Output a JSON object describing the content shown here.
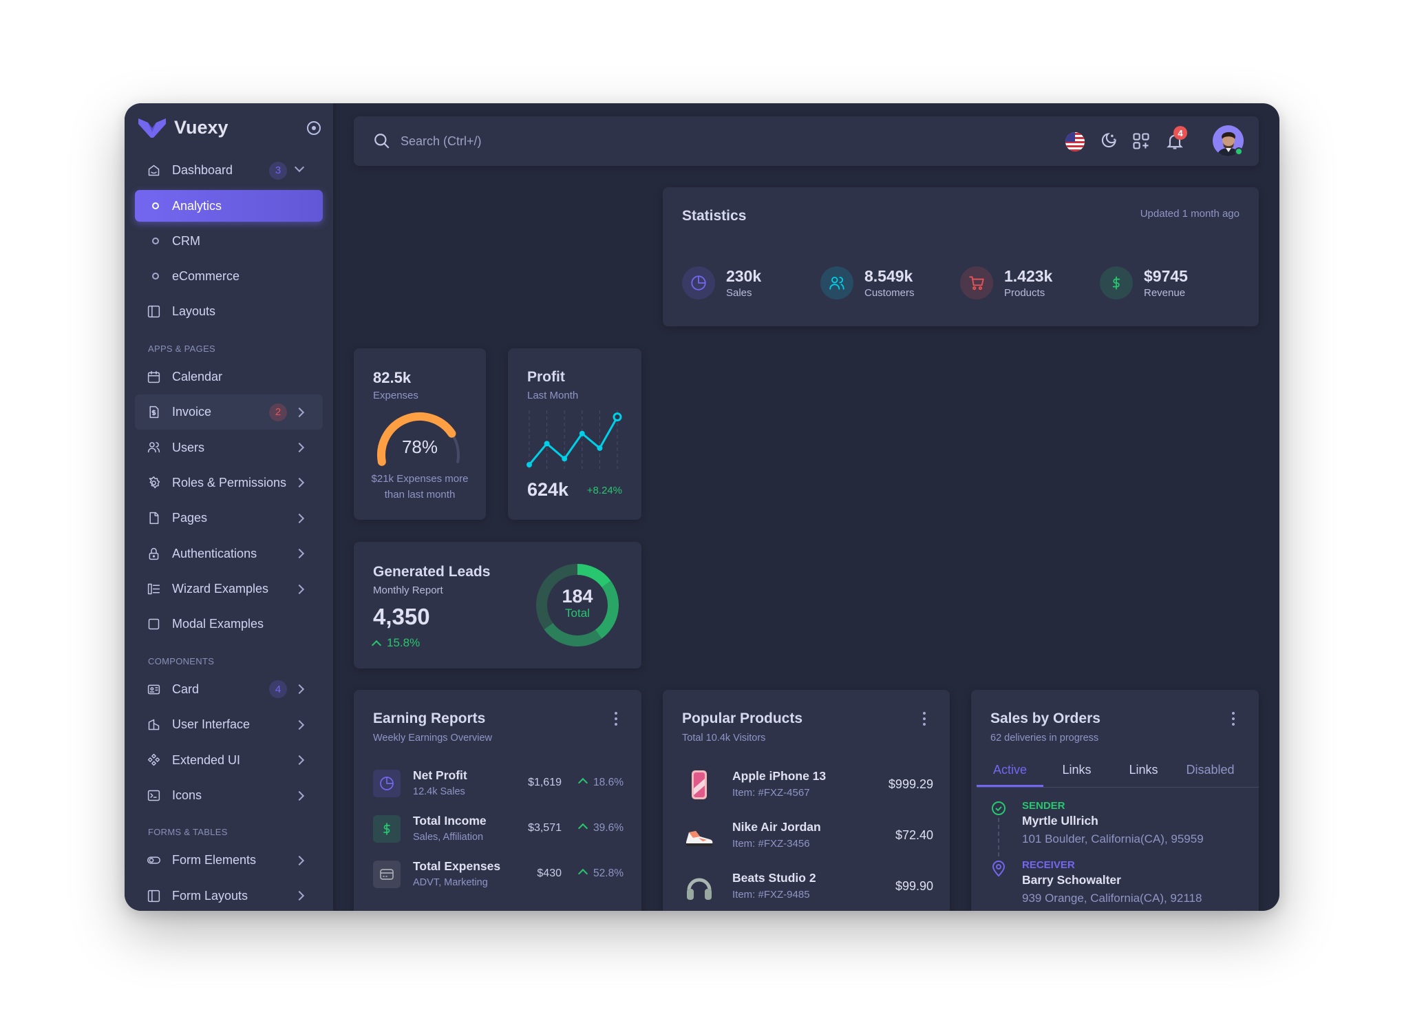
{
  "app": {
    "name": "Vuexy",
    "brand_color": "#7367f0"
  },
  "sidebar": {
    "items": [
      {
        "type": "item",
        "label": "Dashboard",
        "icon": "home-icon",
        "badge": "3",
        "badge_color": "#7367f0",
        "chevron": "down"
      },
      {
        "type": "sub",
        "label": "Analytics",
        "active": true
      },
      {
        "type": "sub",
        "label": "CRM"
      },
      {
        "type": "sub",
        "label": "eCommerce"
      },
      {
        "type": "item",
        "label": "Layouts",
        "icon": "layout-icon"
      },
      {
        "type": "section",
        "label": "APPS & PAGES"
      },
      {
        "type": "item",
        "label": "Calendar",
        "icon": "calendar-icon"
      },
      {
        "type": "item",
        "label": "Invoice",
        "icon": "file-dollar-icon",
        "badge": "2",
        "badge_color": "#ea5455",
        "chevron": "right",
        "hover": true
      },
      {
        "type": "item",
        "label": "Users",
        "icon": "users-icon",
        "chevron": "right"
      },
      {
        "type": "item",
        "label": "Roles & Permissions",
        "icon": "settings-icon",
        "chevron": "right"
      },
      {
        "type": "item",
        "label": "Pages",
        "icon": "file-icon",
        "chevron": "right"
      },
      {
        "type": "item",
        "label": "Authentications",
        "icon": "lock-icon",
        "chevron": "right"
      },
      {
        "type": "item",
        "label": "Wizard Examples",
        "icon": "wizard-icon",
        "chevron": "right"
      },
      {
        "type": "item",
        "label": "Modal Examples",
        "icon": "square-icon"
      },
      {
        "type": "section",
        "label": "COMPONENTS"
      },
      {
        "type": "item",
        "label": "Card",
        "icon": "id-card-icon",
        "badge": "4",
        "badge_color": "#7367f0",
        "chevron": "right"
      },
      {
        "type": "item",
        "label": "User Interface",
        "icon": "ui-icon",
        "chevron": "right"
      },
      {
        "type": "item",
        "label": "Extended UI",
        "icon": "components-icon",
        "chevron": "right"
      },
      {
        "type": "item",
        "label": "Icons",
        "icon": "terminal-icon",
        "chevron": "right"
      },
      {
        "type": "section",
        "label": "FORMS & TABLES"
      },
      {
        "type": "item",
        "label": "Form Elements",
        "icon": "toggle-icon",
        "chevron": "right"
      },
      {
        "type": "item",
        "label": "Form Layouts",
        "icon": "layout-icon",
        "chevron": "right"
      }
    ]
  },
  "navbar": {
    "search_placeholder": "Search (Ctrl+/)",
    "notification_count": "4"
  },
  "statistics": {
    "title": "Statistics",
    "updated": "Updated 1 month ago",
    "items": [
      {
        "value": "230k",
        "label": "Sales",
        "icon": "pie-chart-icon",
        "color": "#7367f0"
      },
      {
        "value": "8.549k",
        "label": "Customers",
        "icon": "users-icon",
        "color": "#00cfe8"
      },
      {
        "value": "1.423k",
        "label": "Products",
        "icon": "cart-icon",
        "color": "#ea5455"
      },
      {
        "value": "$9745",
        "label": "Revenue",
        "icon": "dollar-icon",
        "color": "#28c76f"
      }
    ]
  },
  "expenses": {
    "value": "82.5k",
    "label": "Expenses",
    "percent": 78,
    "percent_label": "78%",
    "note": "$21k Expenses more than last month",
    "color": "#ff9f43"
  },
  "profit": {
    "title": "Profit",
    "subtitle": "Last Month",
    "value": "624k",
    "change": "+8.24%",
    "color": "#00cfe8"
  },
  "leads": {
    "title": "Generated Leads",
    "subtitle": "Monthly Report",
    "value": "4,350",
    "change": "15.8%",
    "total": "184",
    "total_label": "Total"
  },
  "chart_data": [
    {
      "type": "gauge",
      "value": 78,
      "max": 100,
      "color": "#ff9f43"
    },
    {
      "type": "line",
      "x": [
        1,
        2,
        3,
        4,
        5,
        6
      ],
      "values": [
        0,
        42,
        12,
        62,
        33,
        95
      ],
      "color": "#00cfe8",
      "grid": "vertical-dashed"
    },
    {
      "type": "donut",
      "values": [
        15,
        25,
        25,
        35
      ],
      "colors": [
        "#28c76f",
        "#29a666",
        "#2c7f5b",
        "#2e564c"
      ],
      "total": 184
    }
  ],
  "earning": {
    "title": "Earning Reports",
    "subtitle": "Weekly Earnings Overview",
    "rows": [
      {
        "title": "Net Profit",
        "sub": "12.4k Sales",
        "amount": "$1,619",
        "pct": "18.6%",
        "icon": "pie-chart-icon",
        "color": "#7367f0"
      },
      {
        "title": "Total Income",
        "sub": "Sales, Affiliation",
        "amount": "$3,571",
        "pct": "39.6%",
        "icon": "dollar-icon",
        "color": "#28c76f"
      },
      {
        "title": "Total Expenses",
        "sub": "ADVT, Marketing",
        "amount": "$430",
        "pct": "52.8%",
        "icon": "credit-card-icon",
        "color": "#a8aaae"
      }
    ]
  },
  "popular": {
    "title": "Popular Products",
    "subtitle": "Total 10.4k Visitors",
    "rows": [
      {
        "name": "Apple iPhone 13",
        "item": "Item: #FXZ-4567",
        "price": "$999.29",
        "icon": "phone-image"
      },
      {
        "name": "Nike Air Jordan",
        "item": "Item: #FXZ-3456",
        "price": "$72.40",
        "icon": "shoe-image"
      },
      {
        "name": "Beats Studio 2",
        "item": "Item: #FXZ-9485",
        "price": "$99.90",
        "icon": "headphones-image"
      }
    ]
  },
  "orders": {
    "title": "Sales by Orders",
    "subtitle": "62 deliveries in progress",
    "tabs": [
      "Active",
      "Links",
      "Links",
      "Disabled"
    ],
    "sender": {
      "label": "SENDER",
      "name": "Myrtle Ullrich",
      "address": "101 Boulder, California(CA), 95959"
    },
    "receiver": {
      "label": "RECEIVER",
      "name": "Barry Schowalter",
      "address": "939 Orange, California(CA), 92118"
    }
  }
}
